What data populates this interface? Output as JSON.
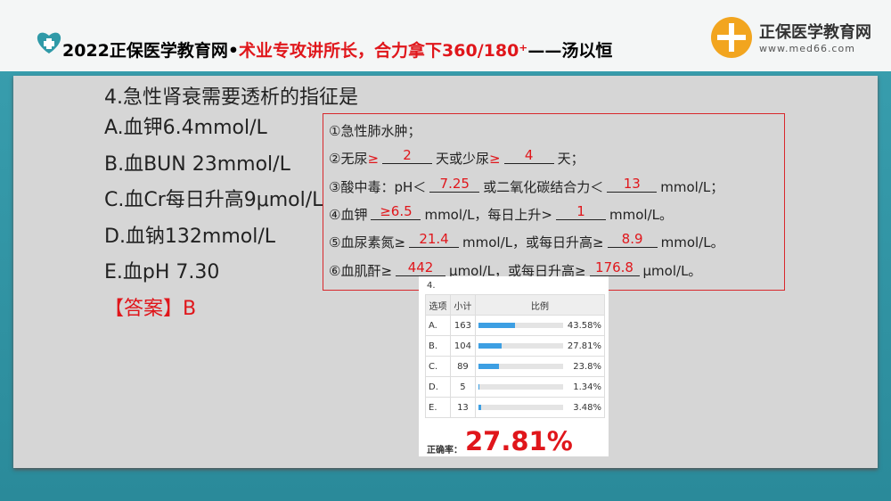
{
  "header": {
    "title_prefix": "2022正保医学教育网•",
    "title_highlight": "术业专攻讲所长，合力拿下360/180⁺",
    "title_suffix": "——汤以恒",
    "logo_name": "正保医学教育网",
    "logo_url": "www.med66.com"
  },
  "question": {
    "stem": "4.急性肾衰需要透析的指征是",
    "options": [
      "A.血钾6.4mmol/L",
      "B.血BUN 23mmol/L",
      "C.血Cr每日升高9μmol/L",
      "D.血钠132mmol/L",
      "E.血pH 7.30"
    ],
    "answer": "【答案】B"
  },
  "criteria": [
    [
      "①急性肺水肿；"
    ],
    [
      "②无尿",
      "≥",
      "2",
      "天或少尿",
      "≥",
      "4",
      "天；"
    ],
    [
      "③酸中毒：pH＜",
      "7.25",
      "或二氧化碳结合力＜",
      "13",
      "mmol/L；"
    ],
    [
      "④血钾",
      "≥6.5",
      "mmol/L，每日上升>",
      "1",
      "mmol/L。"
    ],
    [
      "⑤血尿素氮≥",
      "21.4",
      "mmol/L，或每日升高≥",
      "8.9",
      "mmol/L。"
    ],
    [
      "⑥血肌酐≥",
      "442",
      "μmol/L，或每日升高≥",
      "176.8",
      "μmol/L。"
    ]
  ],
  "stats": {
    "title": "4.",
    "headers": [
      "选项",
      "小计",
      "比例"
    ],
    "rows": [
      {
        "option": "A.",
        "count": 163,
        "percent": 43.58,
        "percent_label": "43.58%"
      },
      {
        "option": "B.",
        "count": 104,
        "percent": 27.81,
        "percent_label": "27.81%"
      },
      {
        "option": "C.",
        "count": 89,
        "percent": 23.8,
        "percent_label": "23.8%"
      },
      {
        "option": "D.",
        "count": 5,
        "percent": 1.34,
        "percent_label": "1.34%"
      },
      {
        "option": "E.",
        "count": 13,
        "percent": 3.48,
        "percent_label": "3.48%"
      }
    ],
    "accuracy_label": "正确率：",
    "accuracy": "27.81%",
    "bar_color": "#3d9fe3"
  }
}
